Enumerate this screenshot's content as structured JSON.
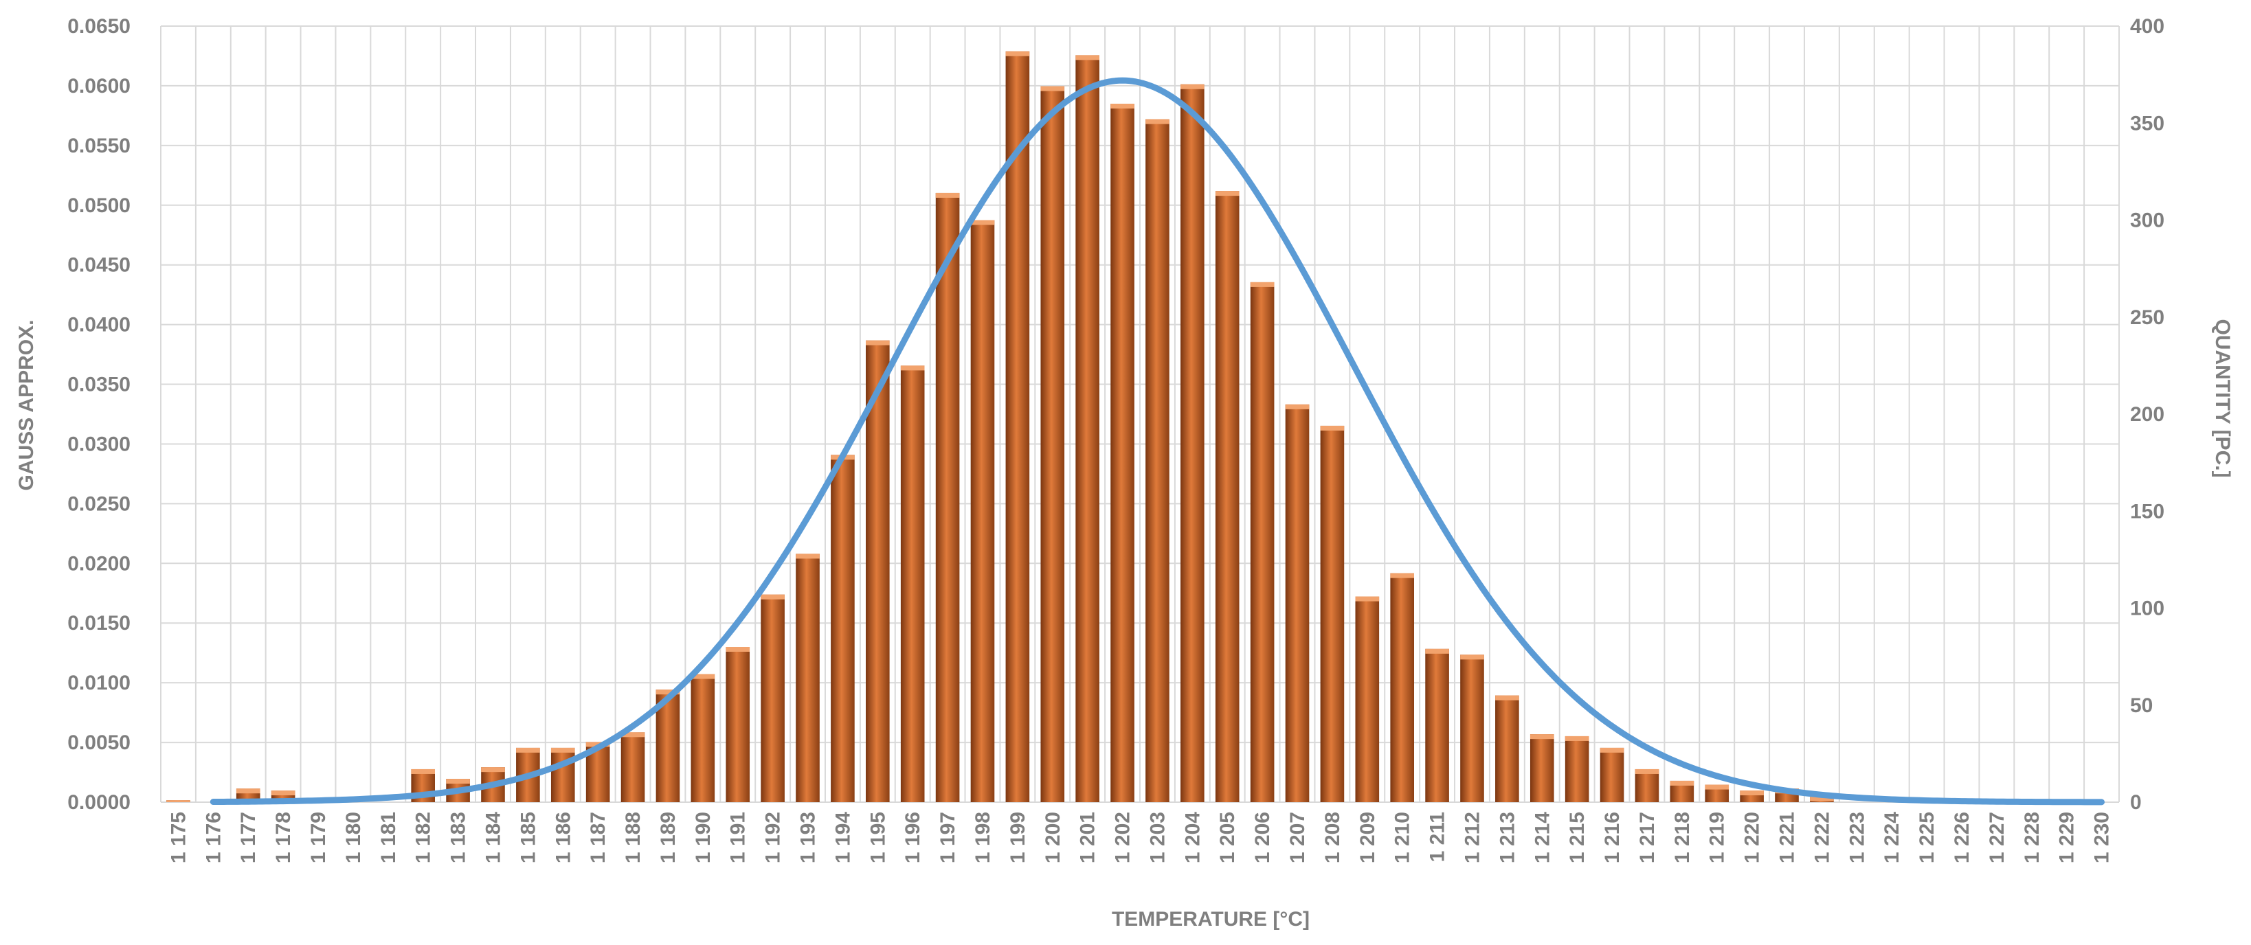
{
  "chart_data": {
    "type": "bar",
    "xlabel": "TEMPERATURE [°C]",
    "ylabel_left": "GAUSS APPROX.",
    "ylabel_right": "QUANTITY [PC.]",
    "categories": [
      "1 175",
      "1 176",
      "1 177",
      "1 178",
      "1 179",
      "1 180",
      "1 181",
      "1 182",
      "1 183",
      "1 184",
      "1 185",
      "1 186",
      "1 187",
      "1 188",
      "1 189",
      "1 190",
      "1 191",
      "1 192",
      "1 193",
      "1 194",
      "1 195",
      "1 196",
      "1 197",
      "1 198",
      "1 199",
      "1 200",
      "1 201",
      "1 202",
      "1 203",
      "1 204",
      "1 205",
      "1 206",
      "1 207",
      "1 208",
      "1 209",
      "1 210",
      "1 211",
      "1 212",
      "1 213",
      "1 214",
      "1 215",
      "1 216",
      "1 217",
      "1 218",
      "1 219",
      "1 220",
      "1 221",
      "1 222",
      "1 223",
      "1 224",
      "1 225",
      "1 226",
      "1 227",
      "1 228",
      "1 229",
      "1 230"
    ],
    "left_axis": {
      "ylim": [
        0,
        0.065
      ],
      "ticks": [
        "0.0000",
        "0.0050",
        "0.0100",
        "0.0150",
        "0.0200",
        "0.0250",
        "0.0300",
        "0.0350",
        "0.0400",
        "0.0450",
        "0.0500",
        "0.0550",
        "0.0600",
        "0.0650"
      ]
    },
    "right_axis": {
      "ylim": [
        0,
        400
      ],
      "ticks": [
        "0",
        "50",
        "100",
        "150",
        "200",
        "250",
        "300",
        "350",
        "400"
      ]
    },
    "grid": true,
    "series": [
      {
        "kind": "bar",
        "axis": "right",
        "color": "#c0602a",
        "values": [
          1,
          0,
          7,
          6,
          0,
          0,
          0,
          17,
          12,
          18,
          28,
          28,
          31,
          36,
          58,
          66,
          80,
          107,
          128,
          179,
          238,
          225,
          314,
          300,
          387,
          369,
          385,
          360,
          352,
          370,
          315,
          268,
          205,
          194,
          106,
          118,
          79,
          76,
          55,
          35,
          34,
          28,
          17,
          11,
          9,
          6,
          7,
          3,
          0,
          0,
          0,
          0,
          0,
          0,
          0,
          0
        ]
      },
      {
        "kind": "line",
        "axis": "left",
        "color": "#5b9bd5",
        "distribution": "normal",
        "mean": 1202,
        "sd": 6.6,
        "x_range": [
          1176,
          1230
        ]
      }
    ]
  }
}
